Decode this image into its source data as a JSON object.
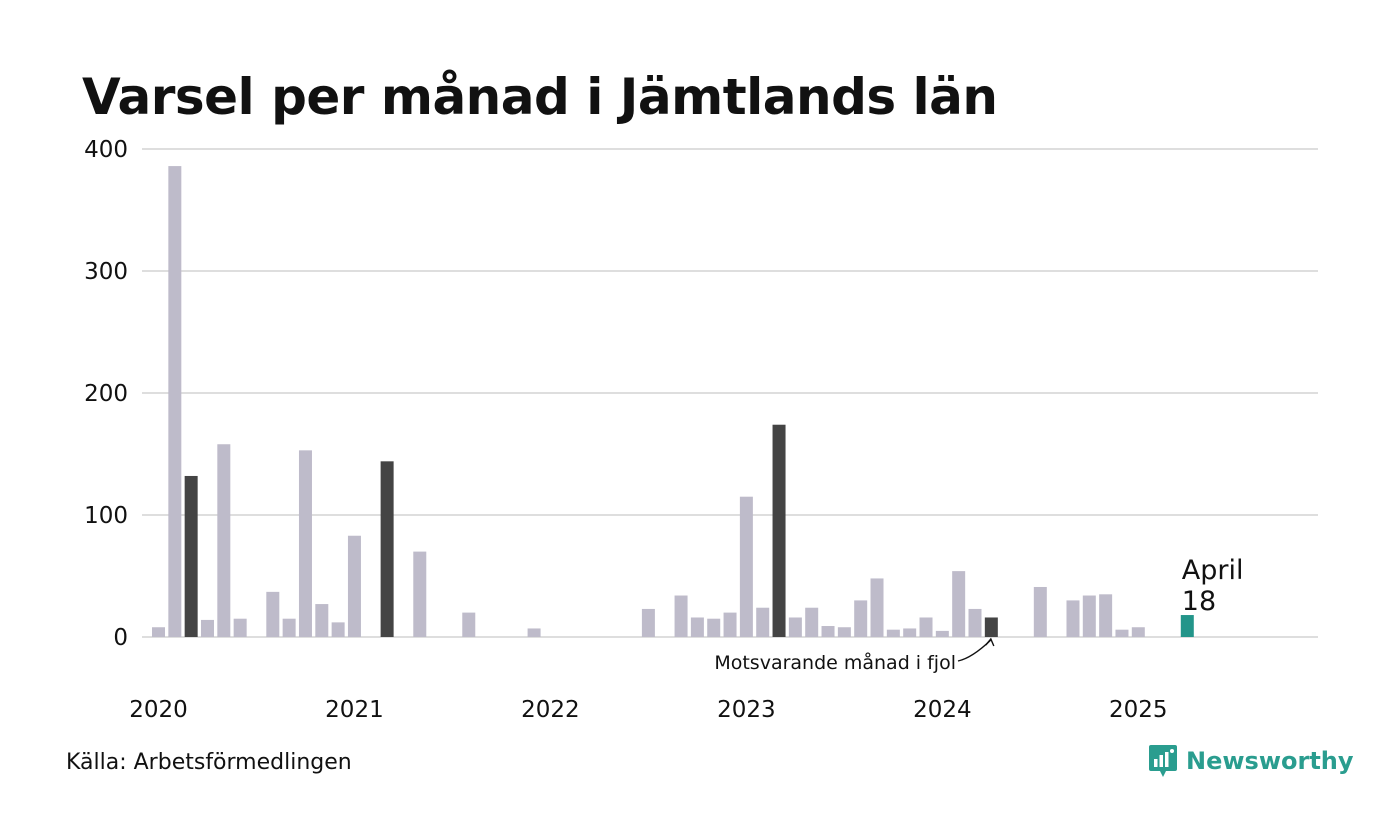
{
  "header": {
    "title": "Varsel per månad i Jämtlands län"
  },
  "footer": {
    "source": "Källa: Arbetsförmedlingen",
    "brand": "Newsworthy"
  },
  "colors": {
    "default_bar": "#bebbca",
    "previous_year_bar": "#444444",
    "current_bar": "#23958a",
    "grid": "#dedede",
    "brand": "#2a9d8f"
  },
  "chart_data": {
    "type": "bar",
    "title": "Varsel per månad i Jämtlands län",
    "xlabel": "",
    "ylabel": "",
    "ylim": [
      0,
      400
    ],
    "yticks": [
      0,
      100,
      200,
      300,
      400
    ],
    "xtick_labels": [
      "2020",
      "2021",
      "2022",
      "2023",
      "2024",
      "2025"
    ],
    "grid": true,
    "start": "2020-01",
    "months": [
      "2020-01",
      "2020-02",
      "2020-03",
      "2020-04",
      "2020-05",
      "2020-06",
      "2020-07",
      "2020-08",
      "2020-09",
      "2020-10",
      "2020-11",
      "2020-12",
      "2021-01",
      "2021-02",
      "2021-03",
      "2021-04",
      "2021-05",
      "2021-06",
      "2021-07",
      "2021-08",
      "2021-09",
      "2021-10",
      "2021-11",
      "2021-12",
      "2022-01",
      "2022-02",
      "2022-03",
      "2022-04",
      "2022-05",
      "2022-06",
      "2022-07",
      "2022-08",
      "2022-09",
      "2022-10",
      "2022-11",
      "2022-12",
      "2023-01",
      "2023-02",
      "2023-03",
      "2023-04",
      "2023-05",
      "2023-06",
      "2023-07",
      "2023-08",
      "2023-09",
      "2023-10",
      "2023-11",
      "2023-12",
      "2024-01",
      "2024-02",
      "2024-03",
      "2024-04",
      "2024-05",
      "2024-06",
      "2024-07",
      "2024-08",
      "2024-09",
      "2024-10",
      "2024-11",
      "2024-12",
      "2025-01",
      "2025-02",
      "2025-03",
      "2025-04",
      "2025-05",
      "2025-06",
      "2025-07",
      "2025-08",
      "2025-09",
      "2025-10",
      "2025-11",
      "2025-12"
    ],
    "values": [
      8,
      386,
      132,
      14,
      158,
      15,
      0,
      37,
      15,
      153,
      27,
      12,
      83,
      0,
      144,
      0,
      70,
      0,
      0,
      20,
      0,
      0,
      0,
      7,
      0,
      0,
      0,
      0,
      0,
      0,
      23,
      0,
      34,
      16,
      15,
      20,
      115,
      24,
      174,
      16,
      24,
      9,
      8,
      30,
      48,
      6,
      7,
      16,
      5,
      54,
      23,
      16,
      0,
      0,
      41,
      0,
      30,
      34,
      35,
      6,
      8,
      0,
      0,
      18,
      null,
      null,
      null,
      null,
      null,
      null,
      null,
      null
    ],
    "highlight_previous_years": [
      "2020-03",
      "2021-03",
      "2023-03",
      "2024-04"
    ],
    "highlight_current": "2025-04",
    "current_label": {
      "month": "April",
      "value": "18"
    },
    "annotation": {
      "text": "Motsvarande månad i fjol",
      "target": "2024-04"
    }
  }
}
